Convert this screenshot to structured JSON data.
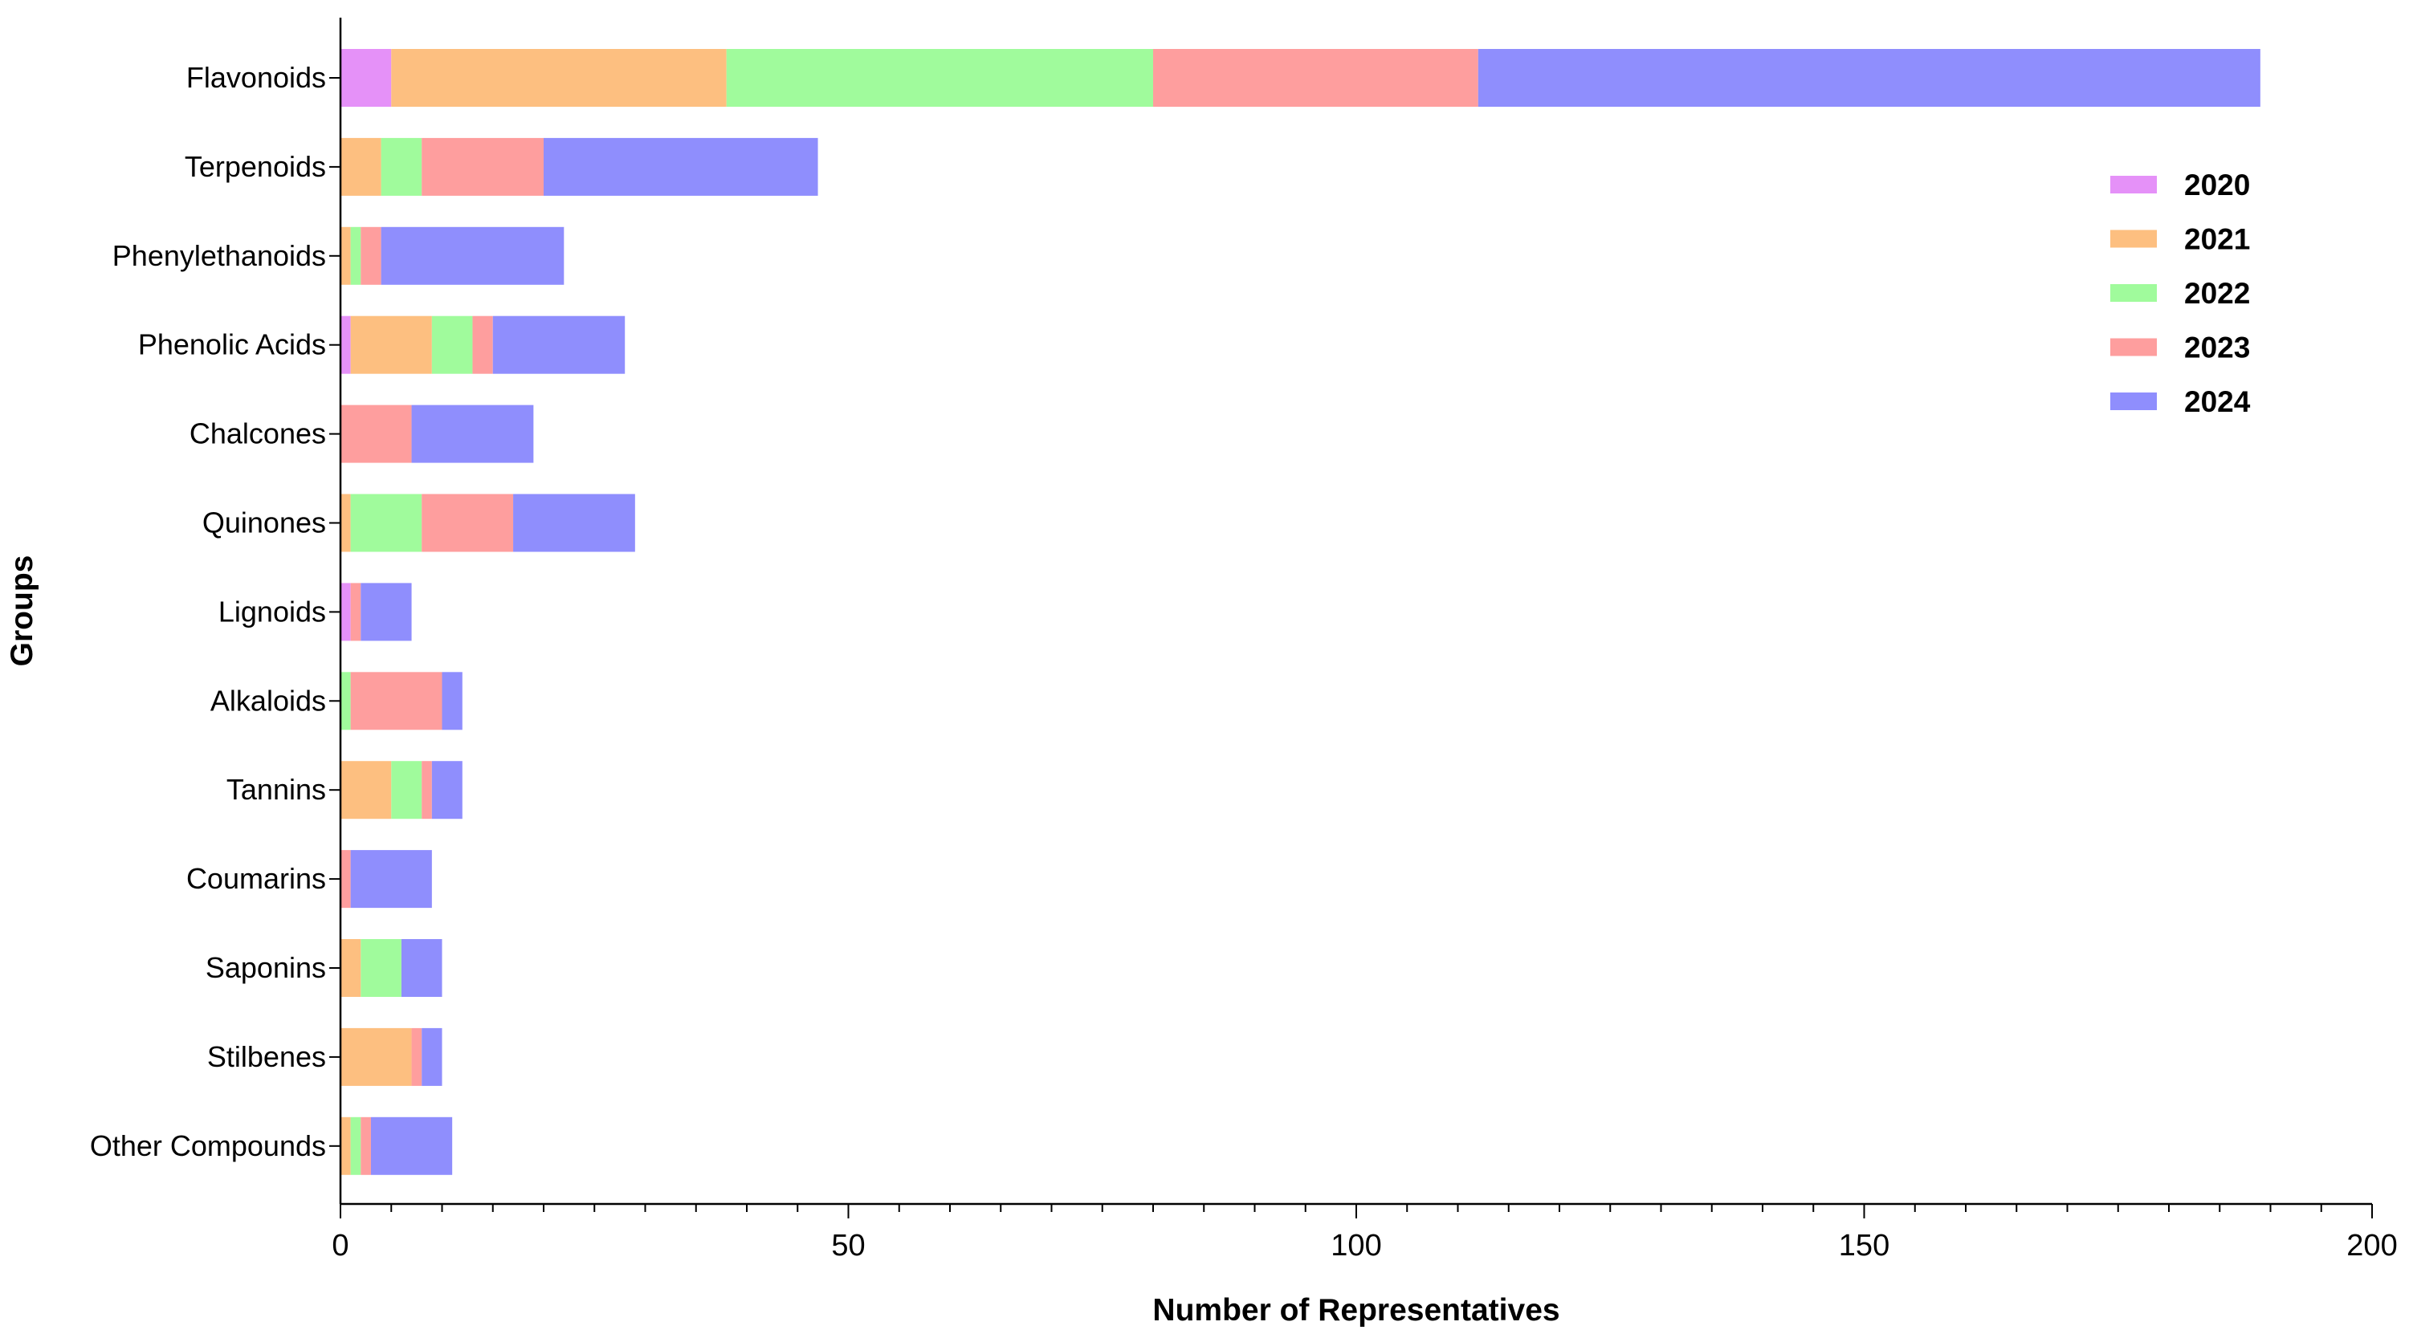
{
  "chart_data": {
    "type": "bar",
    "orientation": "horizontal",
    "stacked": true,
    "title": "",
    "xlabel": "Number of Representatives",
    "ylabel": "Groups",
    "xlim": [
      0,
      200
    ],
    "x_ticks": [
      0,
      50,
      100,
      150,
      200
    ],
    "x_minor_step": 5,
    "grid": false,
    "legend_position": "top-right",
    "categories": [
      "Flavonoids",
      "Terpenoids",
      "Phenylethanoids",
      "Phenolic Acids",
      "Chalcones",
      "Quinones",
      "Lignoids",
      "Alkaloids",
      "Tannins",
      "Coumarins",
      "Saponins",
      "Stilbenes",
      "Other Compounds"
    ],
    "series": [
      {
        "name": "2020",
        "color": "#E591F8",
        "values": [
          5,
          0,
          0,
          1,
          0,
          0,
          1,
          0,
          0,
          0,
          0,
          0,
          0
        ]
      },
      {
        "name": "2021",
        "color": "#FDBF80",
        "values": [
          33,
          4,
          1,
          8,
          0,
          1,
          0,
          0,
          5,
          0,
          2,
          7,
          1
        ]
      },
      {
        "name": "2022",
        "color": "#A0FB9C",
        "values": [
          42,
          4,
          1,
          4,
          0,
          7,
          0,
          1,
          3,
          0,
          4,
          0,
          1
        ]
      },
      {
        "name": "2023",
        "color": "#FE9E9E",
        "values": [
          32,
          12,
          2,
          2,
          7,
          9,
          1,
          9,
          1,
          1,
          0,
          1,
          1
        ]
      },
      {
        "name": "2024",
        "color": "#8F8EFD",
        "values": [
          77,
          27,
          18,
          13,
          12,
          12,
          5,
          2,
          3,
          8,
          4,
          2,
          8
        ]
      }
    ]
  }
}
